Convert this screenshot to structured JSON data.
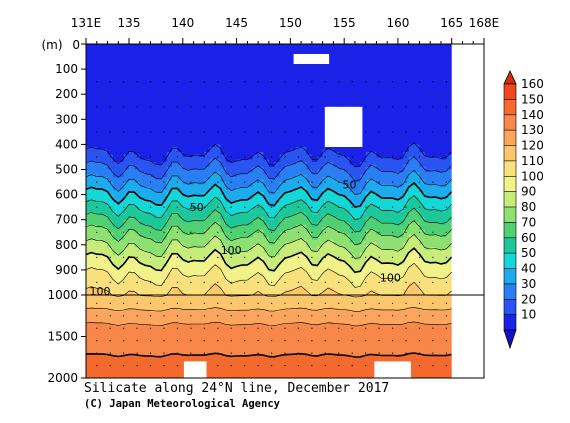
{
  "chart_data": {
    "type": "contour",
    "title": "Silicate along 24°N line, December 2017",
    "credit": "(C) Japan Meteorological Agency",
    "x_ticks": [
      "131E",
      "135",
      "140",
      "145",
      "150",
      "155",
      "160",
      "165",
      "168E"
    ],
    "x_tick_values": [
      131,
      135,
      140,
      145,
      150,
      155,
      160,
      165,
      168
    ],
    "xlim": [
      131,
      168
    ],
    "y_unit": "(m)",
    "y_ticks_upper": [
      "0",
      "100",
      "200",
      "300",
      "400",
      "500",
      "600",
      "700",
      "800",
      "900",
      "1000"
    ],
    "y_ticks_lower": [
      "1500",
      "2000"
    ],
    "y_tick_values_upper": [
      0,
      100,
      200,
      300,
      400,
      500,
      600,
      700,
      800,
      900,
      1000
    ],
    "y_tick_values_lower": [
      1500,
      2000
    ],
    "ylim": [
      0,
      2000
    ],
    "y_break": 1000,
    "contour_labels": [
      {
        "text": "50",
        "x": 141.3,
        "y": 650
      },
      {
        "text": "50",
        "x": 155.5,
        "y": 560
      },
      {
        "text": "100",
        "x": 144.5,
        "y": 820
      },
      {
        "text": "100",
        "x": 159.3,
        "y": 930
      },
      {
        "text": "100",
        "x": 132.3,
        "y": 985
      }
    ],
    "contour_levels": [
      20,
      30,
      40,
      50,
      60,
      70,
      80,
      90,
      100,
      110,
      120,
      130,
      140,
      150,
      160
    ],
    "bold_levels": [
      50,
      100,
      150
    ],
    "depth_profile": [
      {
        "depth": 0,
        "value": 5
      },
      {
        "depth": 350,
        "value": 5
      },
      {
        "depth": 420,
        "value": 15
      },
      {
        "depth": 470,
        "value": 25
      },
      {
        "depth": 530,
        "value": 35
      },
      {
        "depth": 580,
        "value": 45
      },
      {
        "depth": 630,
        "value": 55
      },
      {
        "depth": 680,
        "value": 65
      },
      {
        "depth": 730,
        "value": 75
      },
      {
        "depth": 780,
        "value": 85
      },
      {
        "depth": 840,
        "value": 95
      },
      {
        "depth": 890,
        "value": 105
      },
      {
        "depth": 960,
        "value": 115
      },
      {
        "depth": 1000,
        "value": 120
      },
      {
        "depth": 1100,
        "value": 125
      },
      {
        "depth": 1250,
        "value": 135
      },
      {
        "depth": 1450,
        "value": 145
      },
      {
        "depth": 2000,
        "value": 155
      }
    ],
    "no_data": [
      {
        "x0": 150.3,
        "x1": 153.6,
        "y0": 40,
        "y1": 80
      },
      {
        "x0": 153.2,
        "x1": 156.7,
        "y0": 250,
        "y1": 410
      },
      {
        "x0": 140.1,
        "x1": 142.2,
        "y0": 1800,
        "y1": 2000
      },
      {
        "x0": 157.8,
        "x1": 161.2,
        "y0": 1800,
        "y1": 2000
      },
      {
        "x0": 165.0,
        "x1": 168.0,
        "y0": 0,
        "y1": 2000
      }
    ],
    "colorbar": {
      "labels": [
        "160",
        "150",
        "140",
        "130",
        "120",
        "110",
        "100",
        "90",
        "80",
        "70",
        "60",
        "50",
        "40",
        "30",
        "20",
        "10"
      ],
      "colors": [
        "#f04818",
        "#f46a2e",
        "#f8874a",
        "#fba55e",
        "#fcc66c",
        "#f8e07c",
        "#f2f28a",
        "#c8ec7a",
        "#8ee072",
        "#50d074",
        "#1cc89a",
        "#14d8d8",
        "#1cacee",
        "#2a7ef4",
        "#2a54f2",
        "#1a22e8"
      ],
      "top_color": "#d82c0c",
      "bottom_color": "#1010c8"
    }
  }
}
